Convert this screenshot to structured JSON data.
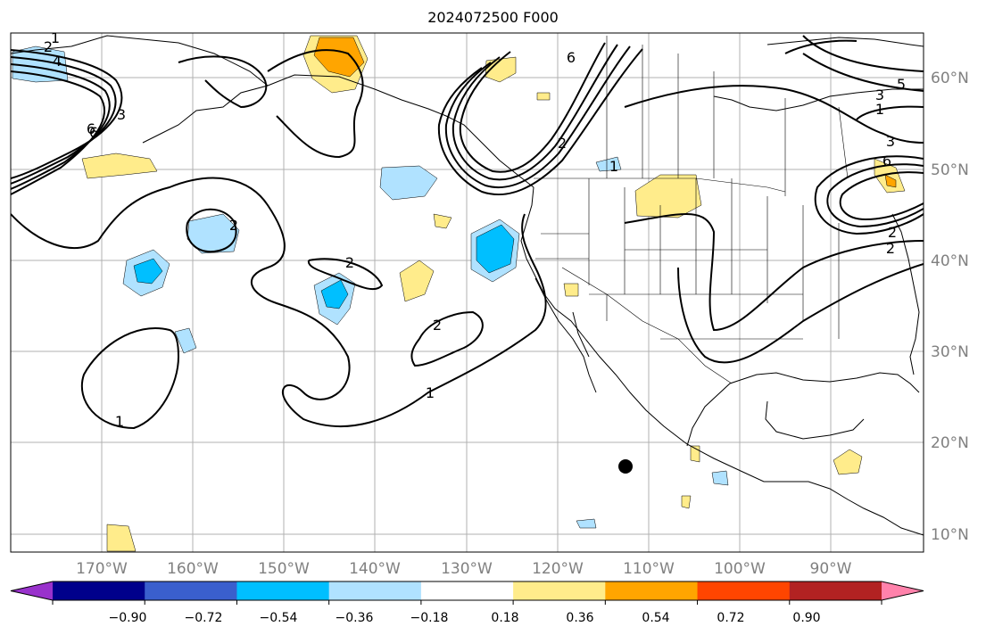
{
  "title": "2024072500 F000",
  "longitude_labels": [
    "170°W",
    "160°W",
    "150°W",
    "140°W",
    "130°W",
    "120°W",
    "110°W",
    "100°W",
    "90°W"
  ],
  "latitude_labels": [
    "60°N",
    "50°N",
    "40°N",
    "30°N",
    "20°N",
    "10°N"
  ],
  "colorbar": {
    "ticks": [
      "−0.90",
      "−0.72",
      "−0.54",
      "−0.36",
      "−0.18",
      "0.18",
      "0.36",
      "0.54",
      "0.72",
      "0.90"
    ],
    "colors": [
      "#9932cc",
      "#00008b",
      "#3a5fcd",
      "#00bfff",
      "#b0e2ff",
      "#ffffff",
      "#ffec8b",
      "#ffa500",
      "#ff4500",
      "#b22222",
      "#ff82ab"
    ]
  },
  "contour_labels": [
    "1",
    "2",
    "4",
    "6",
    "5",
    "3",
    "1",
    "6",
    "2",
    "2",
    "1",
    "1",
    "2",
    "3",
    "6",
    "2",
    "2",
    "1",
    "2",
    "6",
    "3"
  ],
  "colors": {
    "land_line": "#000000",
    "grid": "#b0b0b0",
    "warm": "#ffec8b",
    "warm2": "#ffa500",
    "cool": "#b0e2ff",
    "cool2": "#00bfff"
  }
}
